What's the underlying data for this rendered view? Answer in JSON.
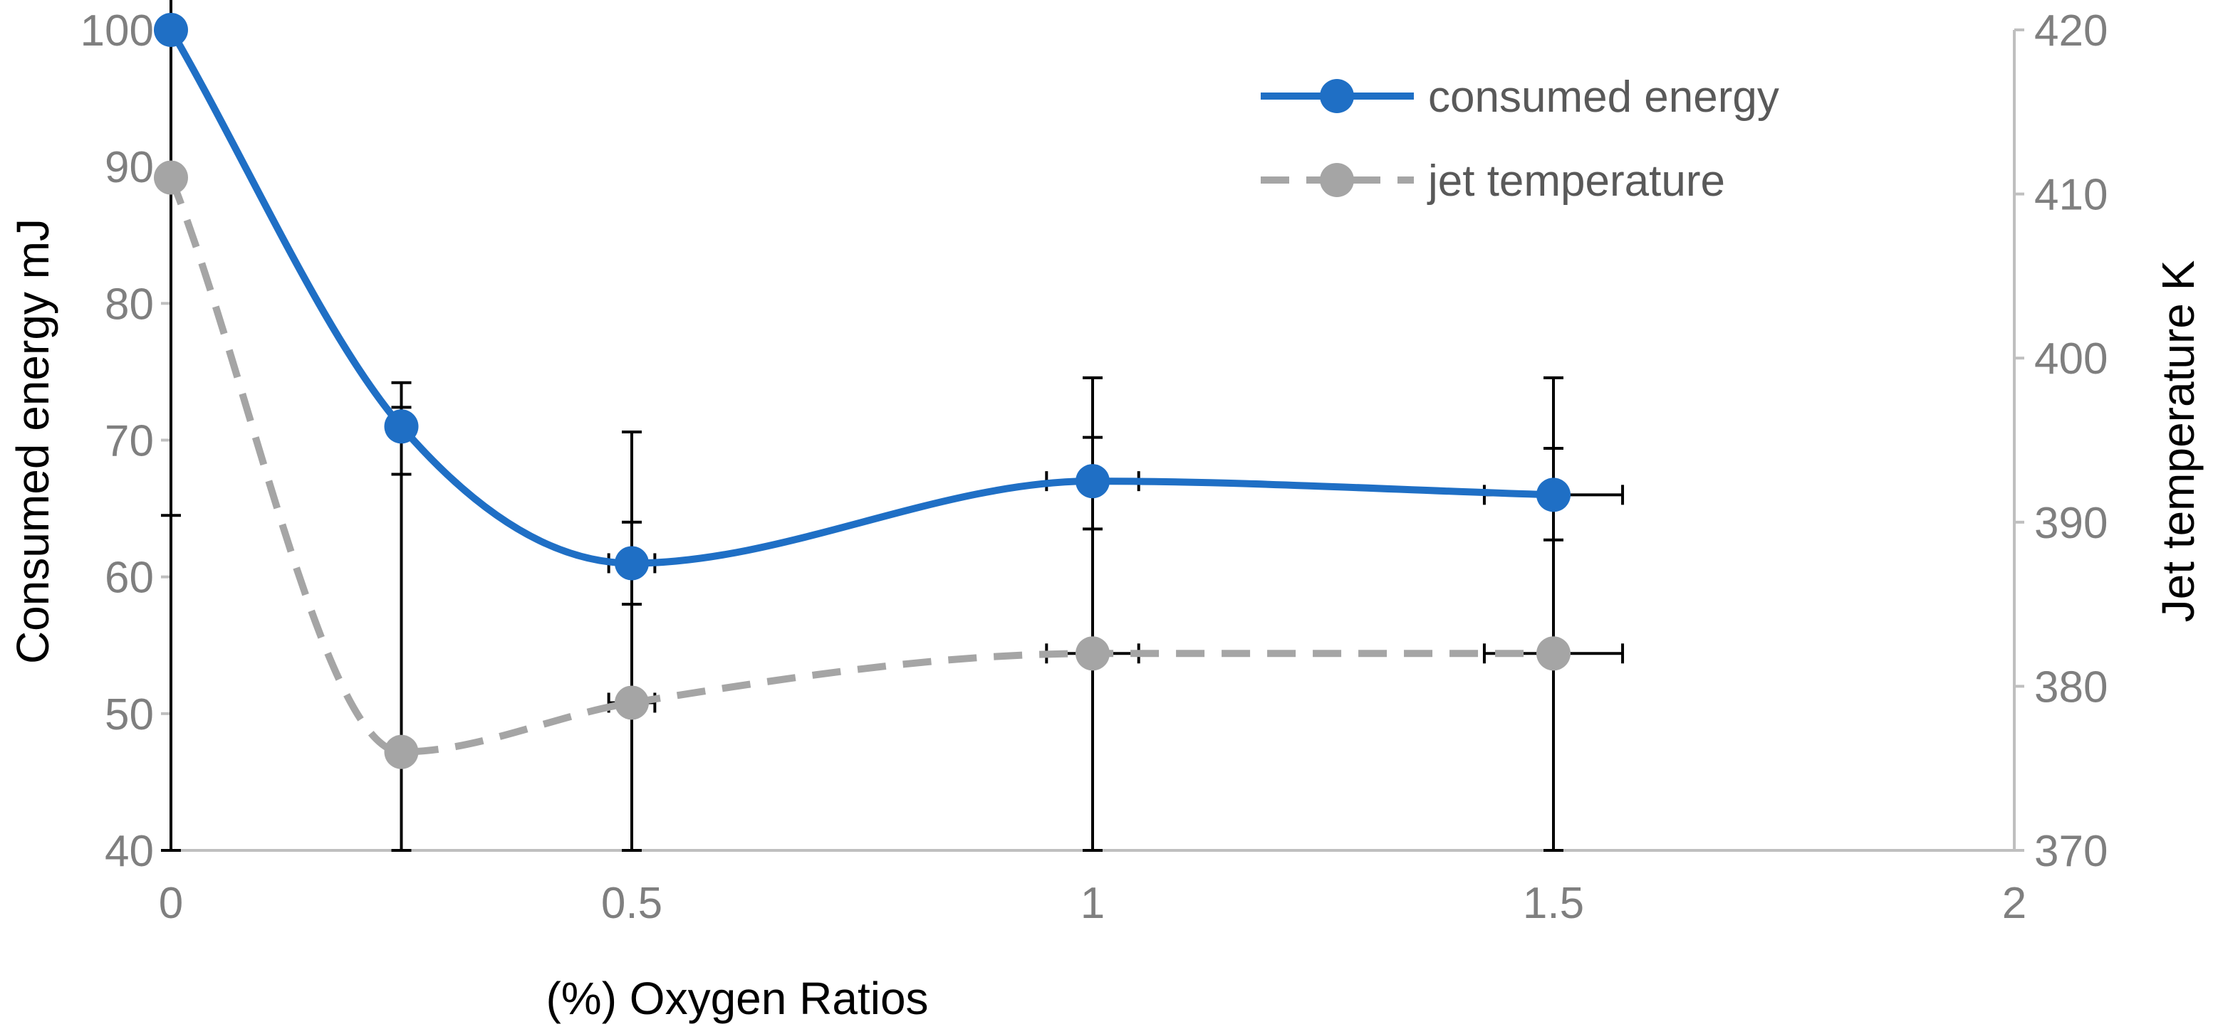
{
  "chart_data": {
    "type": "line",
    "title": "",
    "xlabel": "(%) Oxygen Ratios",
    "ylabel": "Consumed energy  mJ",
    "y2label": "Jet temperature K",
    "xlim": [
      0,
      2
    ],
    "ylim": [
      40,
      100
    ],
    "y2lim": [
      370,
      420
    ],
    "xticks": [
      "0",
      "0.5",
      "1",
      "1.5",
      "2"
    ],
    "yticks": [
      "40",
      "50",
      "60",
      "70",
      "80",
      "90",
      "100"
    ],
    "y2ticks": [
      "370",
      "380",
      "390",
      "400",
      "410",
      "420"
    ],
    "grid": false,
    "legend_position": "top-right",
    "series": [
      {
        "name": "consumed energy",
        "axis": "left",
        "color": "#1f6fc5",
        "style": "solid",
        "x": [
          0,
          0.25,
          0.5,
          1,
          1.5
        ],
        "values": [
          100,
          71,
          61,
          67,
          66
        ],
        "yerr_minus": [
          35.5,
          3.5,
          3,
          3.5,
          3.3
        ],
        "yerr_plus": [
          4.7,
          3.2,
          3,
          3.2,
          3.4
        ],
        "xerr": [
          0,
          0,
          0.025,
          0.05,
          0.075
        ]
      },
      {
        "name": "jet temperature",
        "axis": "right",
        "color": "#a5a5a5",
        "style": "dashed",
        "x": [
          0,
          0.25,
          0.5,
          1,
          1.5
        ],
        "values": [
          411,
          376,
          379,
          382,
          382
        ],
        "yerr_minus": [
          41,
          6,
          9,
          12,
          12
        ],
        "yerr_plus": [
          0,
          21,
          16.5,
          16.8,
          16.8
        ],
        "xerr": [
          0,
          0,
          0.025,
          0.05,
          0.075
        ]
      }
    ]
  }
}
